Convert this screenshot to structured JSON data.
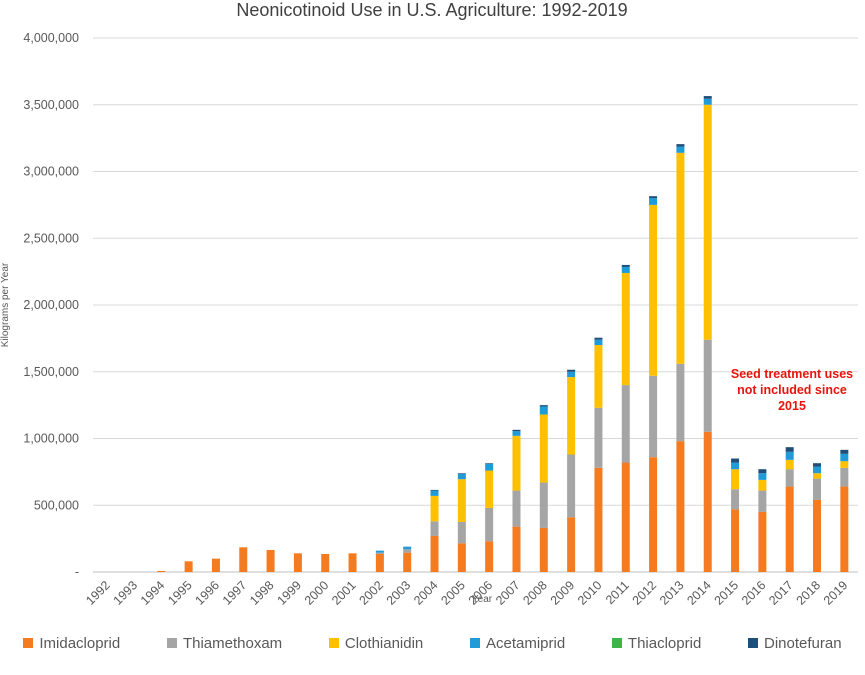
{
  "chart_data": {
    "type": "bar",
    "stacked": true,
    "title": "Neonicotinoid Use in U.S. Agriculture: 1992-2019",
    "xlabel": "Year",
    "ylabel": "Kilograms per Year",
    "ylim": [
      0,
      4000000
    ],
    "ytick_values": [
      0,
      500000,
      1000000,
      1500000,
      2000000,
      2500000,
      3000000,
      3500000,
      4000000
    ],
    "ytick_labels": [
      "-",
      "500,000",
      "1,000,000",
      "1,500,000",
      "2,000,000",
      "2,500,000",
      "3,000,000",
      "3,500,000",
      "4,000,000"
    ],
    "grid": true,
    "legend_position": "bottom",
    "categories": [
      "1992",
      "1993",
      "1994",
      "1995",
      "1996",
      "1997",
      "1998",
      "1999",
      "2000",
      "2001",
      "2002",
      "2003",
      "2004",
      "2005",
      "2006",
      "2007",
      "2008",
      "2009",
      "2010",
      "2011",
      "2012",
      "2013",
      "2014",
      "2015",
      "2016",
      "2017",
      "2018",
      "2019"
    ],
    "series": [
      {
        "name": "Imidacloprid",
        "color": "#F47B20",
        "values": [
          0,
          0,
          8000,
          80000,
          100000,
          185000,
          165000,
          140000,
          135000,
          140000,
          135000,
          145000,
          270000,
          215000,
          230000,
          340000,
          330000,
          410000,
          780000,
          820000,
          860000,
          980000,
          1050000,
          470000,
          450000,
          640000,
          540000,
          640000
        ]
      },
      {
        "name": "Thiamethoxam",
        "color": "#A5A5A5",
        "values": [
          0,
          0,
          0,
          0,
          0,
          0,
          0,
          0,
          0,
          0,
          10000,
          25000,
          110000,
          160000,
          250000,
          270000,
          340000,
          470000,
          450000,
          580000,
          610000,
          580000,
          690000,
          150000,
          160000,
          130000,
          160000,
          140000
        ]
      },
      {
        "name": "Clothianidin",
        "color": "#FFC000",
        "values": [
          0,
          0,
          0,
          0,
          0,
          0,
          0,
          0,
          0,
          0,
          0,
          0,
          190000,
          320000,
          280000,
          410000,
          510000,
          580000,
          470000,
          840000,
          1280000,
          1580000,
          1760000,
          150000,
          80000,
          70000,
          40000,
          50000
        ]
      },
      {
        "name": "Acetamiprid",
        "color": "#1F9BD7",
        "values": [
          0,
          0,
          0,
          0,
          0,
          0,
          0,
          0,
          0,
          0,
          15000,
          20000,
          40000,
          40000,
          50000,
          35000,
          60000,
          40000,
          40000,
          45000,
          50000,
          45000,
          45000,
          50000,
          50000,
          60000,
          50000,
          55000
        ]
      },
      {
        "name": "Thiacloprid",
        "color": "#3CB54A",
        "values": [
          0,
          0,
          0,
          0,
          0,
          0,
          0,
          0,
          0,
          0,
          0,
          0,
          0,
          0,
          0,
          0,
          0,
          0,
          0,
          0,
          0,
          0,
          0,
          0,
          0,
          0,
          0,
          0
        ]
      },
      {
        "name": "Dinotefuran",
        "color": "#1F4E79",
        "values": [
          0,
          0,
          0,
          0,
          0,
          0,
          0,
          0,
          0,
          0,
          0,
          0,
          5000,
          5000,
          5000,
          10000,
          10000,
          15000,
          15000,
          15000,
          15000,
          20000,
          20000,
          30000,
          30000,
          35000,
          25000,
          30000
        ]
      }
    ],
    "annotation": {
      "lines": [
        "Seed treatment uses",
        "not included since",
        "2015"
      ],
      "color": "#E8140C"
    }
  }
}
